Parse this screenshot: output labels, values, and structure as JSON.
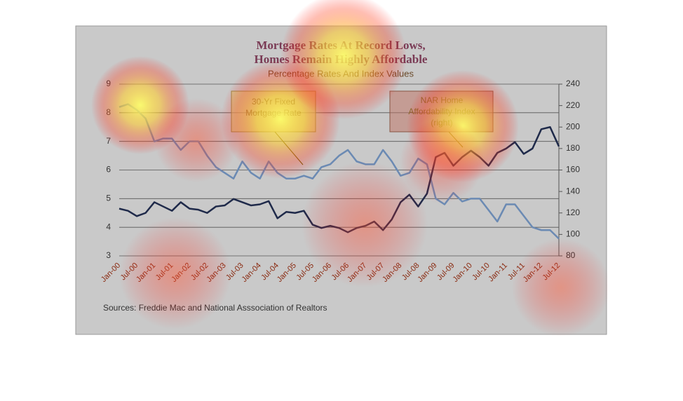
{
  "chart_data": {
    "type": "line",
    "title": [
      "Mortgage Rates At Record Lows,",
      "Homes Remain Highly Affordable"
    ],
    "subtitle": "Percentage Rates And Index Values",
    "annotations": [
      [
        "30-Yr Fixed",
        "Mortgage Rate"
      ],
      [
        "NAR Home",
        "Affordability Index",
        "(right)"
      ]
    ],
    "source": "Sources:  Freddie Mac and National Asssociation of Realtors",
    "categories": [
      "Jan-00",
      null,
      "Jul-00",
      null,
      "Jan-01",
      null,
      "Jul-01",
      null,
      "Jan-02",
      null,
      "Jul-02",
      null,
      "Jan-03",
      null,
      "Jul-03",
      null,
      "Jan-04",
      null,
      "Jul-04",
      null,
      "Jan-05",
      null,
      "Jul-05",
      null,
      "Jan-06",
      null,
      "Jul-06",
      null,
      "Jan-07",
      null,
      "Jul-07",
      null,
      "Jan-08",
      null,
      "Jul-08",
      null,
      "Jan-09",
      null,
      "Jul-09",
      null,
      "Jan-10",
      null,
      "Jul-10",
      null,
      "Jan-11",
      null,
      "Jul-11",
      null,
      "Jan-12",
      null,
      "Jul-12"
    ],
    "series": [
      {
        "name": "30-Yr Fixed Mortgage Rate",
        "color": "#6b8ab3",
        "values": [
          8.2,
          8.3,
          8.1,
          7.8,
          7.0,
          7.1,
          7.1,
          6.7,
          7.0,
          7.0,
          6.5,
          6.1,
          5.9,
          5.7,
          6.3,
          5.9,
          5.7,
          6.3,
          5.9,
          5.7,
          5.7,
          5.8,
          5.7,
          6.1,
          6.2,
          6.5,
          6.7,
          6.3,
          6.2,
          6.2,
          6.7,
          6.3,
          5.8,
          5.9,
          6.4,
          6.2,
          5.0,
          4.8,
          5.2,
          4.9,
          5.0,
          5.0,
          4.6,
          4.2,
          4.8,
          4.8,
          4.4,
          4.0,
          3.9,
          3.9,
          3.6
        ]
      },
      {
        "name": "NAR Home Affordability Index",
        "color": "#1f2a4a",
        "axis": "y2",
        "values": [
          124,
          122,
          117,
          120,
          130,
          126,
          122,
          130,
          124,
          123,
          120,
          126,
          127,
          133,
          130,
          127,
          128,
          131,
          115,
          121,
          120,
          122,
          109,
          106,
          108,
          106,
          102,
          106,
          108,
          112,
          104,
          114,
          130,
          137,
          126,
          138,
          172,
          176,
          164,
          172,
          178,
          172,
          164,
          176,
          180,
          186,
          175,
          180,
          198,
          200,
          182
        ]
      }
    ],
    "ylim": [
      3,
      9
    ],
    "yticks": [
      3,
      4,
      5,
      6,
      7,
      8,
      9
    ],
    "y2lim": [
      80,
      240
    ],
    "y2ticks": [
      80,
      100,
      120,
      140,
      160,
      180,
      200,
      220,
      240
    ],
    "grid": true
  }
}
